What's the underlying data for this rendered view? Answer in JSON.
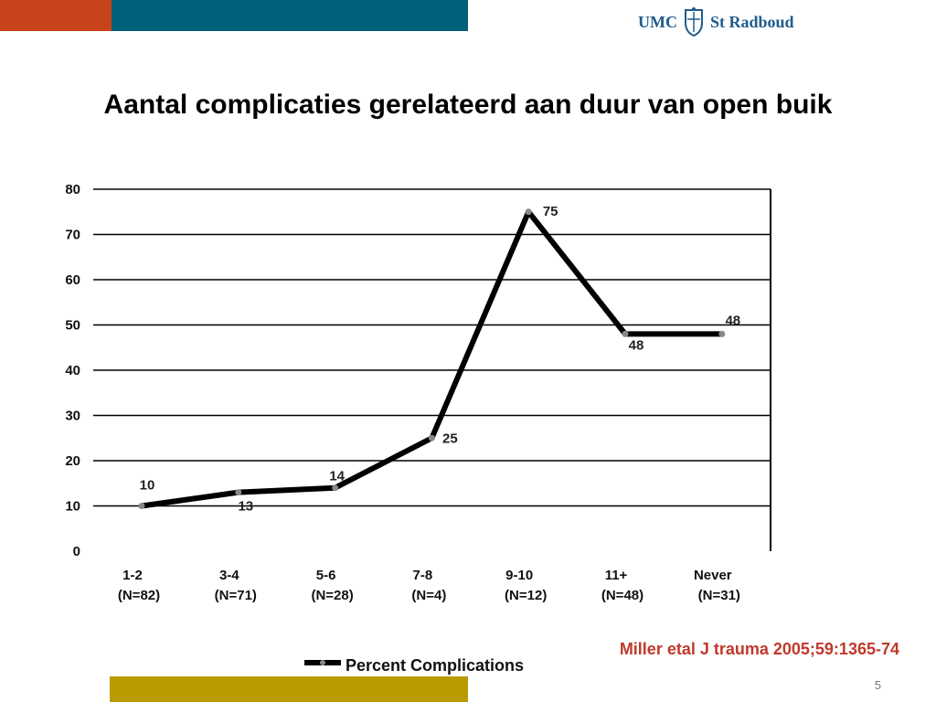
{
  "colors": {
    "orange": "#c8431c",
    "teal": "#00607a",
    "gold": "#b99a00",
    "logo_blue": "#1f5c8c",
    "citation": "#c0392b",
    "line": "#000000"
  },
  "logo": {
    "left_text": "UMC",
    "right_text": "St Radboud",
    "icon": "crest-icon"
  },
  "title": "Aantal complicaties gerelateerd aan  duur van open buik",
  "citation": "Miller etal J trauma 2005;59:1365-74",
  "slide_number": "5",
  "chart_data": {
    "type": "line",
    "title": "Aantal complicaties gerelateerd aan  duur van open buik",
    "categories": [
      "1-2",
      "3-4",
      "5-6",
      "7-8",
      "9-10",
      "11+",
      "Never"
    ],
    "category_sublabels": [
      "(N=82)",
      "(N=71)",
      "(N=28)",
      "(N=4)",
      "(N=12)",
      "(N=48)",
      "(N=31)"
    ],
    "series": [
      {
        "name": "Percent Complications",
        "values": [
          10,
          13,
          14,
          25,
          75,
          48,
          48
        ]
      }
    ],
    "ylim": [
      0,
      80
    ],
    "yticks": [
      0,
      10,
      20,
      30,
      40,
      50,
      60,
      70,
      80
    ],
    "grid": true,
    "legend": "bottom"
  }
}
